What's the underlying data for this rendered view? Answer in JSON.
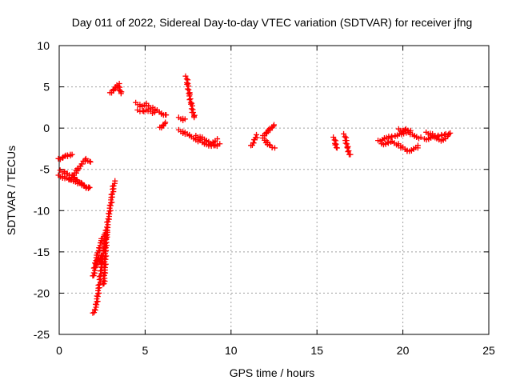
{
  "chart_data": {
    "type": "scatter",
    "title": "Day 011 of 2022, Sidereal Day-to-day VTEC variation (SDTVAR) for receiver jfng",
    "xlabel": "GPS time / hours",
    "ylabel": "SDTVAR / TECUs",
    "xlim": [
      0,
      25
    ],
    "ylim": [
      -25,
      10
    ],
    "xticks": [
      0,
      5,
      10,
      15,
      20,
      25
    ],
    "yticks": [
      -25,
      -20,
      -15,
      -10,
      -5,
      0,
      5,
      10
    ],
    "grid": true,
    "marker": "+",
    "color": "#ff0000",
    "series": [
      {
        "name": "SDTVAR",
        "segments": [
          {
            "x": [
              0.0,
              0.3,
              0.6,
              0.9,
              1.2,
              1.5,
              1.75
            ],
            "y": [
              -5.8,
              -6.0,
              -6.2,
              -6.4,
              -6.7,
              -7.0,
              -7.3
            ]
          },
          {
            "x": [
              0.0,
              0.2,
              0.4,
              0.6,
              0.75
            ],
            "y": [
              -3.8,
              -3.6,
              -3.4,
              -3.3,
              -3.3
            ]
          },
          {
            "x": [
              0.1,
              0.3,
              0.5,
              0.7,
              0.9,
              1.1,
              1.3,
              1.5,
              1.65
            ],
            "y": [
              -5.2,
              -5.4,
              -5.6,
              -5.8,
              -6.1,
              -6.4,
              -6.8,
              -7.1,
              -7.4
            ]
          },
          {
            "x": [
              0.6,
              0.8,
              1.0,
              1.2,
              1.4,
              1.6,
              1.8
            ],
            "y": [
              -6.3,
              -5.8,
              -5.2,
              -4.7,
              -4.1,
              -3.8,
              -4.2
            ]
          },
          {
            "x": [
              2.0,
              2.15,
              2.3,
              2.45,
              2.6,
              2.75,
              2.9,
              3.05,
              3.2
            ],
            "y": [
              -22.5,
              -21.5,
              -19.5,
              -17.0,
              -14.5,
              -12.5,
              -10.5,
              -8.5,
              -6.5
            ]
          },
          {
            "x": [
              2.0,
              2.1,
              2.2,
              2.3,
              2.4,
              2.5,
              2.6
            ],
            "y": [
              -18.0,
              -16.5,
              -15.5,
              -15.0,
              -14.0,
              -13.5,
              -13.0
            ]
          },
          {
            "x": [
              2.1,
              2.2,
              2.3,
              2.4,
              2.5
            ],
            "y": [
              -17.0,
              -16.0,
              -16.2,
              -15.5,
              -16.5
            ]
          },
          {
            "x": [
              2.6,
              2.65,
              2.7,
              2.75,
              2.8
            ],
            "y": [
              -19.0,
              -17.0,
              -15.0,
              -13.0,
              -12.5
            ]
          },
          {
            "x": [
              3.0,
              3.15,
              3.3,
              3.45,
              3.6
            ],
            "y": [
              4.2,
              4.6,
              4.9,
              5.3,
              4.1
            ]
          },
          {
            "x": [
              4.5,
              4.8,
              5.1,
              5.4,
              5.7,
              6.0,
              6.2
            ],
            "y": [
              3.0,
              2.6,
              2.9,
              2.4,
              2.1,
              1.7,
              1.5
            ]
          },
          {
            "x": [
              4.6,
              4.9,
              5.2,
              5.5
            ],
            "y": [
              2.1,
              2.0,
              2.2,
              1.8
            ]
          },
          {
            "x": [
              5.9,
              6.05,
              6.2
            ],
            "y": [
              0.0,
              0.3,
              0.6
            ]
          },
          {
            "x": [
              7.0,
              7.3
            ],
            "y": [
              1.2,
              1.0
            ]
          },
          {
            "x": [
              7.4,
              7.5,
              7.6,
              7.7,
              7.8,
              7.9
            ],
            "y": [
              6.2,
              5.0,
              3.8,
              2.6,
              1.8,
              1.2
            ]
          },
          {
            "x": [
              7.0,
              7.3,
              7.6,
              7.9,
              8.2,
              8.5,
              8.8,
              9.1,
              9.3
            ],
            "y": [
              -0.3,
              -0.6,
              -0.9,
              -1.3,
              -1.6,
              -1.9,
              -2.1,
              -2.2,
              -2.0
            ]
          },
          {
            "x": [
              8.0,
              8.3,
              8.6,
              8.9,
              9.2
            ],
            "y": [
              -1.0,
              -1.2,
              -1.6,
              -1.8,
              -1.4
            ]
          },
          {
            "x": [
              11.2,
              11.35,
              11.5
            ],
            "y": [
              -2.2,
              -1.5,
              -0.9
            ]
          },
          {
            "x": [
              11.9,
              12.1,
              12.3,
              12.5
            ],
            "y": [
              -1.3,
              -1.8,
              -2.2,
              -2.5
            ]
          },
          {
            "x": [
              11.9,
              12.05,
              12.2,
              12.35,
              12.5
            ],
            "y": [
              -1.0,
              -0.6,
              -0.3,
              0.0,
              0.3
            ]
          },
          {
            "x": [
              16.0,
              16.15
            ],
            "y": [
              -1.2,
              -2.5
            ]
          },
          {
            "x": [
              16.6,
              16.7,
              16.8,
              16.9
            ],
            "y": [
              -0.8,
              -1.6,
              -2.5,
              -3.3
            ]
          },
          {
            "x": [
              18.6,
              18.9,
              19.2,
              19.5,
              19.8,
              20.1,
              20.4,
              20.7,
              21.0
            ],
            "y": [
              -1.6,
              -1.3,
              -1.1,
              -1.0,
              -0.8,
              -0.5,
              -0.6,
              -1.0,
              -1.2
            ]
          },
          {
            "x": [
              18.8,
              19.1,
              19.4,
              19.7,
              20.0,
              20.3,
              20.6,
              20.9
            ],
            "y": [
              -2.0,
              -1.8,
              -1.7,
              -2.0,
              -2.4,
              -2.8,
              -2.6,
              -2.2
            ]
          },
          {
            "x": [
              19.8,
              20.0,
              20.2,
              20.4
            ],
            "y": [
              -0.2,
              -0.4,
              -0.2,
              -0.4
            ]
          },
          {
            "x": [
              21.3,
              21.6,
              21.9,
              22.2,
              22.5,
              22.8
            ],
            "y": [
              -1.4,
              -1.2,
              -1.0,
              -0.9,
              -0.8,
              -0.7
            ]
          },
          {
            "x": [
              21.4,
              21.7,
              22.0,
              22.3,
              22.6
            ],
            "y": [
              -0.6,
              -0.8,
              -1.3,
              -1.5,
              -1.1
            ]
          }
        ]
      }
    ]
  }
}
